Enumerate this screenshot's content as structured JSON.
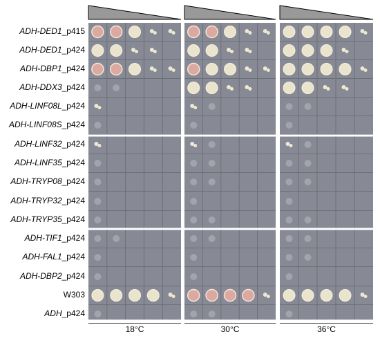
{
  "rows": [
    {
      "italic": "ADH-DED1",
      "plain": "_p415"
    },
    {
      "italic": "ADH-DED1",
      "plain": "_p424"
    },
    {
      "italic": "ADH-DBP1",
      "plain": "_p424"
    },
    {
      "italic": "ADH-DDX3",
      "plain": "_p424"
    },
    {
      "italic": "ADH-LINF08L",
      "plain": "_p424"
    },
    {
      "italic": "ADH-LINF08S",
      "plain": "_p424"
    },
    {
      "italic": "ADH-LINF32",
      "plain": "_p424"
    },
    {
      "italic": "ADH-LINF35",
      "plain": "_p424"
    },
    {
      "italic": "ADH-TRYP08",
      "plain": "_p424"
    },
    {
      "italic": "ADH-TRYP32",
      "plain": "_p424"
    },
    {
      "italic": "ADH-TRYP35",
      "plain": "_p424"
    },
    {
      "italic": "ADH-TIF1",
      "plain": "_p424"
    },
    {
      "italic": "ADH-FAL1",
      "plain": "_p424"
    },
    {
      "italic": "ADH-DBP2",
      "plain": "_p424"
    },
    {
      "plain": "W303"
    },
    {
      "italic": "ADH",
      "plain": "_p424"
    }
  ],
  "temperatures": [
    "18°C",
    "30°C",
    "36°C"
  ]
}
